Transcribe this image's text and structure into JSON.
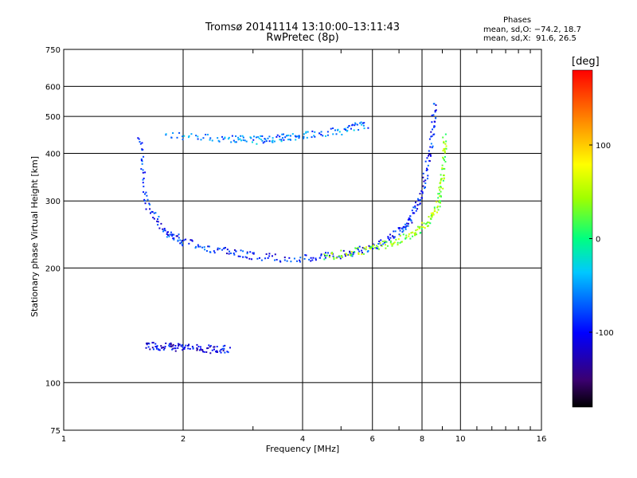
{
  "title": "Tromsø 20141114 13:10:00–13:11:43",
  "subtitle": "RwPretec (8p)",
  "phase_stats": {
    "heading": "Phases",
    "line_o": "mean, sd,O: −74.2, 18.7",
    "line_x": "mean, sd,X:  91.6, 26.5"
  },
  "colorbar": {
    "label": "[deg]",
    "ticks": [
      100,
      0,
      -100
    ],
    "range": [
      -180,
      180
    ]
  },
  "chart_data": {
    "type": "scatter",
    "title": "Tromsø 20141114 13:10:00–13:11:43",
    "subtitle": "RwPretec (8p)",
    "xlabel": "Frequency [MHz]",
    "ylabel": "Stationary phase Virtual Height [km]",
    "x_scale": "log",
    "y_scale": "log",
    "xlim": [
      1,
      16
    ],
    "ylim": [
      75,
      750
    ],
    "x_ticks": [
      1,
      2,
      4,
      6,
      8,
      10,
      16
    ],
    "y_ticks": [
      75,
      100,
      200,
      300,
      400,
      500,
      600,
      750
    ],
    "grid": true,
    "color_variable": "phase (deg)",
    "traces": [
      {
        "description": "O-mode F-layer trace (blue)",
        "phase": -90,
        "points": [
          [
            1.55,
            450
          ],
          [
            1.6,
            300
          ],
          [
            1.8,
            250
          ],
          [
            2.0,
            235
          ],
          [
            2.5,
            222
          ],
          [
            3.0,
            216
          ],
          [
            4.0,
            212
          ],
          [
            5.0,
            218
          ],
          [
            6.0,
            228
          ],
          [
            7.0,
            250
          ],
          [
            7.5,
            270
          ],
          [
            8.0,
            320
          ],
          [
            8.4,
            420
          ],
          [
            8.6,
            550
          ]
        ]
      },
      {
        "description": "X-mode F-layer trace (cyan to yellow)",
        "phase": 40,
        "points": [
          [
            4.5,
            215
          ],
          [
            5.5,
            222
          ],
          [
            6.5,
            232
          ],
          [
            7.5,
            245
          ],
          [
            8.3,
            265
          ],
          [
            8.8,
            300
          ],
          [
            9.0,
            360
          ],
          [
            9.1,
            450
          ]
        ]
      },
      {
        "description": "upper echo band near 440 km",
        "phase": -60,
        "points": [
          [
            1.8,
            450
          ],
          [
            2.5,
            440
          ],
          [
            3.0,
            435
          ],
          [
            3.5,
            440
          ],
          [
            4.0,
            450
          ],
          [
            5.0,
            460
          ],
          [
            5.8,
            480
          ]
        ]
      },
      {
        "description": "low-frequency band near 125 km",
        "phase": -110,
        "points": [
          [
            1.6,
            125
          ],
          [
            1.8,
            125
          ],
          [
            2.0,
            124
          ],
          [
            2.3,
            123
          ],
          [
            2.6,
            123
          ]
        ]
      }
    ]
  }
}
